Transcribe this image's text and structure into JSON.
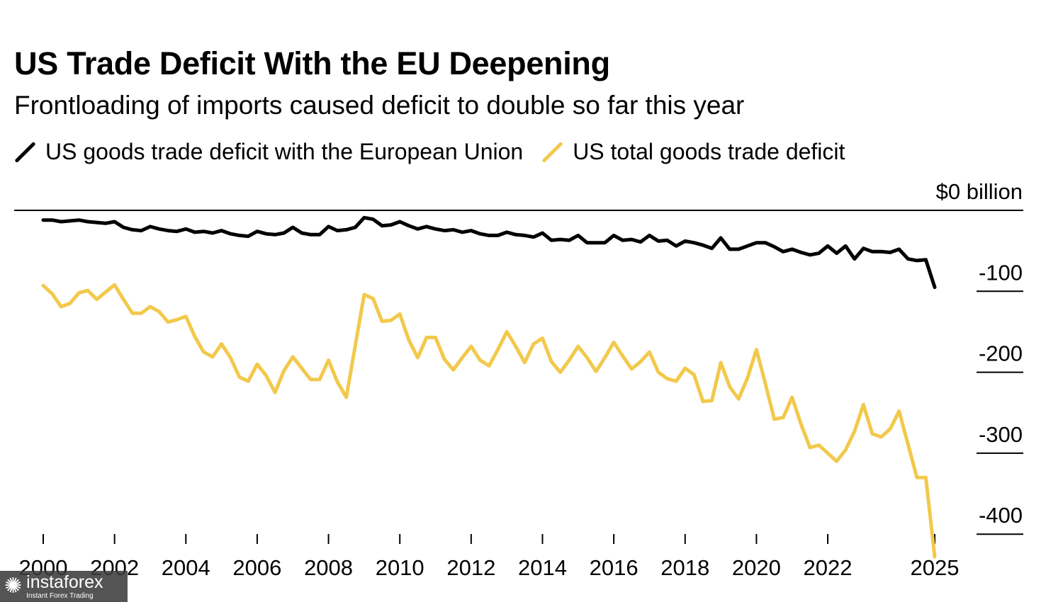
{
  "header": {
    "title": "US Trade Deficit With the EU Deepening",
    "subtitle": "Frontloading of imports caused deficit to double so far this year"
  },
  "watermark": {
    "name": "instaforex",
    "tagline": "Instant Forex Trading"
  },
  "chart_data": {
    "type": "line",
    "title": "US Trade Deficit With the EU Deepening",
    "subtitle": "Frontloading of imports caused deficit to double so far this year",
    "x_unit": "quarter",
    "xlim": [
      2000.0,
      2025.0
    ],
    "x_ticks": [
      2000,
      2002,
      2004,
      2006,
      2008,
      2010,
      2012,
      2014,
      2016,
      2018,
      2020,
      2022,
      2025
    ],
    "x_tick_labels": [
      "2000",
      "2002",
      "2004",
      "2006",
      "2008",
      "2010",
      "2012",
      "2014",
      "2016",
      "2018",
      "2020",
      "2022",
      "2025"
    ],
    "ylim": [
      -430,
      0
    ],
    "y_ticks": [
      0,
      -100,
      -200,
      -300,
      -400
    ],
    "y_tick_labels": [
      "$0 billion",
      "-100",
      "-200",
      "-300",
      "-400"
    ],
    "grid": false,
    "legend_position": "top-left",
    "series": [
      {
        "name": "US goods trade deficit with the European Union",
        "color": "#000000",
        "x": [
          2000.0,
          2000.25,
          2000.5,
          2000.75,
          2001.0,
          2001.25,
          2001.5,
          2001.75,
          2002.0,
          2002.25,
          2002.5,
          2002.75,
          2003.0,
          2003.25,
          2003.5,
          2003.75,
          2004.0,
          2004.25,
          2004.5,
          2004.75,
          2005.0,
          2005.25,
          2005.5,
          2005.75,
          2006.0,
          2006.25,
          2006.5,
          2006.75,
          2007.0,
          2007.25,
          2007.5,
          2007.75,
          2008.0,
          2008.25,
          2008.5,
          2008.75,
          2009.0,
          2009.25,
          2009.5,
          2009.75,
          2010.0,
          2010.25,
          2010.5,
          2010.75,
          2011.0,
          2011.25,
          2011.5,
          2011.75,
          2012.0,
          2012.25,
          2012.5,
          2012.75,
          2013.0,
          2013.25,
          2013.5,
          2013.75,
          2014.0,
          2014.25,
          2014.5,
          2014.75,
          2015.0,
          2015.25,
          2015.5,
          2015.75,
          2016.0,
          2016.25,
          2016.5,
          2016.75,
          2017.0,
          2017.25,
          2017.5,
          2017.75,
          2018.0,
          2018.25,
          2018.5,
          2018.75,
          2019.0,
          2019.25,
          2019.5,
          2019.75,
          2020.0,
          2020.25,
          2020.5,
          2020.75,
          2021.0,
          2021.25,
          2021.5,
          2021.75,
          2022.0,
          2022.25,
          2022.5,
          2022.75,
          2023.0,
          2023.25,
          2023.5,
          2023.75,
          2024.0,
          2024.25,
          2024.5,
          2024.75,
          2025.0
        ],
        "values": [
          -12,
          -12,
          -14,
          -13,
          -12,
          -14,
          -15,
          -16,
          -14,
          -21,
          -24,
          -25,
          -20,
          -23,
          -25,
          -26,
          -23,
          -27,
          -26,
          -28,
          -25,
          -29,
          -31,
          -32,
          -26,
          -29,
          -30,
          -28,
          -21,
          -28,
          -30,
          -30,
          -20,
          -25,
          -24,
          -21,
          -9,
          -11,
          -19,
          -18,
          -14,
          -19,
          -23,
          -20,
          -23,
          -25,
          -24,
          -27,
          -25,
          -29,
          -31,
          -31,
          -27,
          -30,
          -31,
          -33,
          -28,
          -37,
          -36,
          -37,
          -31,
          -40,
          -40,
          -40,
          -31,
          -37,
          -36,
          -39,
          -31,
          -38,
          -37,
          -44,
          -38,
          -40,
          -43,
          -47,
          -34,
          -48,
          -48,
          -44,
          -40,
          -40,
          -45,
          -51,
          -48,
          -52,
          -55,
          -53,
          -44,
          -53,
          -44,
          -60,
          -47,
          -51,
          -51,
          -52,
          -48,
          -60,
          -62,
          -61,
          -95
        ]
      },
      {
        "name": "US total goods trade deficit",
        "color": "#f2c94c",
        "x": [
          2000.0,
          2000.25,
          2000.5,
          2000.75,
          2001.0,
          2001.25,
          2001.5,
          2001.75,
          2002.0,
          2002.25,
          2002.5,
          2002.75,
          2003.0,
          2003.25,
          2003.5,
          2003.75,
          2004.0,
          2004.25,
          2004.5,
          2004.75,
          2005.0,
          2005.25,
          2005.5,
          2005.75,
          2006.0,
          2006.25,
          2006.5,
          2006.75,
          2007.0,
          2007.25,
          2007.5,
          2007.75,
          2008.0,
          2008.25,
          2008.5,
          2008.75,
          2009.0,
          2009.25,
          2009.5,
          2009.75,
          2010.0,
          2010.25,
          2010.5,
          2010.75,
          2011.0,
          2011.25,
          2011.5,
          2011.75,
          2012.0,
          2012.25,
          2012.5,
          2012.75,
          2013.0,
          2013.25,
          2013.5,
          2013.75,
          2014.0,
          2014.25,
          2014.5,
          2014.75,
          2015.0,
          2015.25,
          2015.5,
          2015.75,
          2016.0,
          2016.25,
          2016.5,
          2016.75,
          2017.0,
          2017.25,
          2017.5,
          2017.75,
          2018.0,
          2018.25,
          2018.5,
          2018.75,
          2019.0,
          2019.25,
          2019.5,
          2019.75,
          2020.0,
          2020.25,
          2020.5,
          2020.75,
          2021.0,
          2021.25,
          2021.5,
          2021.75,
          2022.0,
          2022.25,
          2022.5,
          2022.75,
          2023.0,
          2023.25,
          2023.5,
          2023.75,
          2024.0,
          2024.25,
          2024.5,
          2024.75,
          2025.0
        ],
        "values": [
          -93,
          -103,
          -119,
          -115,
          -102,
          -99,
          -110,
          -101,
          -92,
          -110,
          -127,
          -127,
          -119,
          -125,
          -138,
          -135,
          -131,
          -156,
          -175,
          -181,
          -165,
          -182,
          -206,
          -211,
          -190,
          -204,
          -225,
          -198,
          -181,
          -195,
          -209,
          -209,
          -185,
          -212,
          -231,
          -167,
          -104,
          -109,
          -137,
          -136,
          -128,
          -160,
          -182,
          -157,
          -157,
          -184,
          -197,
          -182,
          -168,
          -185,
          -192,
          -172,
          -150,
          -168,
          -188,
          -165,
          -158,
          -187,
          -200,
          -185,
          -168,
          -182,
          -199,
          -182,
          -163,
          -180,
          -196,
          -187,
          -175,
          -200,
          -208,
          -211,
          -195,
          -203,
          -236,
          -235,
          -188,
          -218,
          -233,
          -207,
          -172,
          -214,
          -258,
          -256,
          -231,
          -264,
          -293,
          -290,
          -300,
          -310,
          -296,
          -273,
          -240,
          -276,
          -280,
          -270,
          -248,
          -289,
          -330,
          -330,
          -428
        ]
      }
    ]
  }
}
